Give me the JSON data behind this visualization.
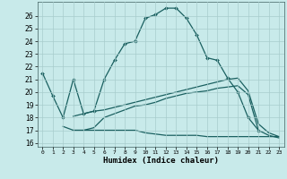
{
  "bg_color": "#c8eaea",
  "grid_color": "#a8cccc",
  "line_color": "#1a6060",
  "xlabel": "Humidex (Indice chaleur)",
  "xlim": [
    -0.5,
    23.5
  ],
  "ylim": [
    15.7,
    27.1
  ],
  "yticks": [
    16,
    17,
    18,
    19,
    20,
    21,
    22,
    23,
    24,
    25,
    26
  ],
  "xticks": [
    0,
    1,
    2,
    3,
    4,
    5,
    6,
    7,
    8,
    9,
    10,
    11,
    12,
    13,
    14,
    15,
    16,
    17,
    18,
    19,
    20,
    21,
    22,
    23
  ],
  "line1_x": [
    0,
    1,
    2,
    3,
    4,
    5,
    6,
    7,
    8,
    9,
    10,
    11,
    12,
    13,
    14,
    15,
    16,
    17,
    18,
    19,
    20,
    21
  ],
  "line1_y": [
    21.5,
    19.7,
    18.0,
    21.0,
    18.3,
    18.5,
    21.0,
    22.5,
    23.8,
    24.0,
    25.8,
    26.1,
    26.6,
    26.6,
    25.8,
    24.5,
    22.7,
    22.5,
    21.1,
    20.0,
    18.0,
    17.0
  ],
  "line2_x": [
    3,
    4,
    5,
    6,
    7,
    8,
    9,
    10,
    11,
    12,
    13,
    14,
    15,
    16,
    17,
    18,
    19,
    20,
    21,
    22,
    23
  ],
  "line2_y": [
    18.1,
    18.3,
    18.5,
    18.6,
    18.8,
    19.0,
    19.2,
    19.4,
    19.6,
    19.8,
    20.0,
    20.2,
    20.4,
    20.6,
    20.8,
    21.0,
    21.1,
    20.1,
    17.5,
    16.8,
    16.5
  ],
  "line3_x": [
    3,
    4,
    5,
    6,
    7,
    8,
    9,
    10,
    11,
    12,
    13,
    14,
    15,
    16,
    17,
    18,
    19,
    20,
    21,
    22,
    23
  ],
  "line3_y": [
    17.0,
    17.0,
    17.2,
    18.0,
    18.3,
    18.6,
    18.9,
    19.0,
    19.2,
    19.5,
    19.7,
    19.9,
    20.0,
    20.1,
    20.3,
    20.4,
    20.5,
    19.8,
    17.0,
    16.6,
    16.4
  ],
  "line4_x": [
    2,
    3,
    4,
    5,
    6,
    7,
    8,
    9,
    10,
    11,
    12,
    13,
    14,
    15,
    16,
    17,
    18,
    19,
    20,
    21,
    22,
    23
  ],
  "line4_y": [
    17.3,
    17.0,
    17.0,
    17.0,
    17.0,
    17.0,
    17.0,
    17.0,
    16.8,
    16.7,
    16.6,
    16.6,
    16.6,
    16.6,
    16.5,
    16.5,
    16.5,
    16.5,
    16.5,
    16.5,
    16.5,
    16.5
  ]
}
